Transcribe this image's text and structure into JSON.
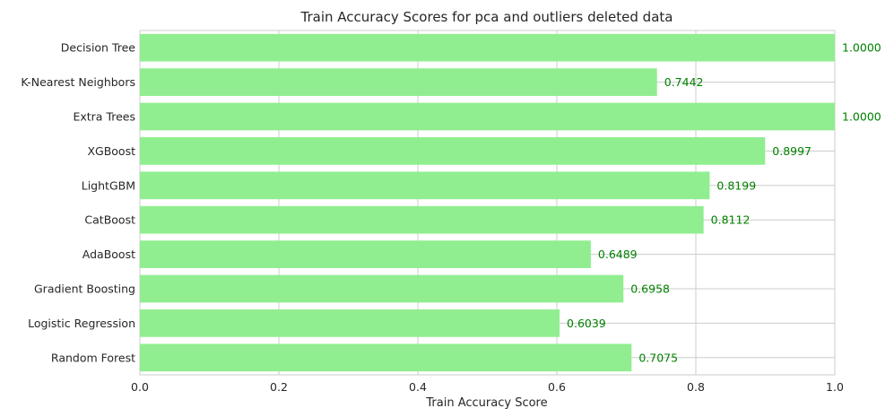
{
  "chart_data": {
    "type": "bar",
    "orientation": "horizontal",
    "title": "Train Accuracy Scores for pca and outliers deleted data",
    "xlabel": "Train Accuracy Score",
    "ylabel": "",
    "xlim": [
      0,
      1.0
    ],
    "xticks": [
      "0.0",
      "0.2",
      "0.4",
      "0.6",
      "0.8",
      "1.0"
    ],
    "grid": true,
    "bar_color": "#90ee90",
    "label_color": "#008000",
    "categories": [
      "Decision Tree",
      "K-Nearest Neighbors",
      "Extra Trees",
      "XGBoost",
      "LightGBM",
      "CatBoost",
      "AdaBoost",
      "Gradient Boosting",
      "Logistic Regression",
      "Random Forest"
    ],
    "values": [
      1.0,
      0.7442,
      1.0,
      0.8997,
      0.8199,
      0.8112,
      0.6489,
      0.6958,
      0.6039,
      0.7075
    ],
    "value_labels": [
      "1.0000",
      "0.7442",
      "1.0000",
      "0.8997",
      "0.8199",
      "0.8112",
      "0.6489",
      "0.6958",
      "0.6039",
      "0.7075"
    ]
  }
}
